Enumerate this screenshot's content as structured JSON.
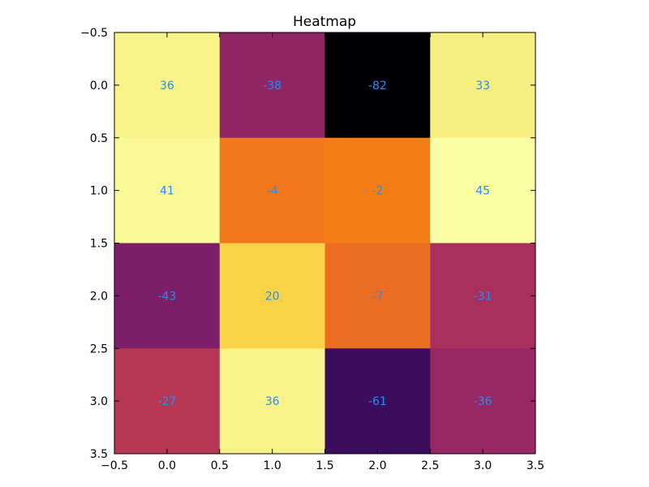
{
  "chart_data": {
    "type": "heatmap",
    "title": "Heatmap",
    "colormap": "inferno",
    "annotation_color": "#1e90ff",
    "rows": 4,
    "cols": 4,
    "values": [
      [
        36,
        -38,
        -82,
        33
      ],
      [
        41,
        -4,
        -2,
        45
      ],
      [
        -43,
        20,
        -7,
        -31
      ],
      [
        -27,
        36,
        -61,
        -36
      ]
    ],
    "xlim": [
      -0.5,
      3.5
    ],
    "ylim": [
      3.5,
      -0.5
    ],
    "x_ticks": [
      "−0.5",
      "0.0",
      "0.5",
      "1.0",
      "1.5",
      "2.0",
      "2.5",
      "3.0",
      "3.5"
    ],
    "y_ticks": [
      "−0.5",
      "0.0",
      "0.5",
      "1.0",
      "1.5",
      "2.0",
      "2.5",
      "3.0",
      "3.5"
    ],
    "x_tick_values": [
      -0.5,
      0,
      0.5,
      1,
      1.5,
      2,
      2.5,
      3,
      3.5
    ],
    "y_tick_values": [
      -0.5,
      0,
      0.5,
      1,
      1.5,
      2,
      2.5,
      3,
      3.5
    ]
  }
}
